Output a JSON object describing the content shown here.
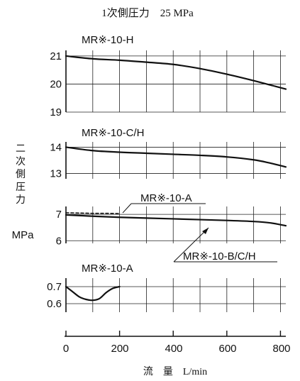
{
  "title": "1次側圧力　25 MPa",
  "ylabel_chars": [
    "二",
    "次",
    "側",
    "圧",
    "力"
  ],
  "ylabel_unit": "MPa",
  "xlabel": "流　量　L/min",
  "x_ticks": [
    "0",
    "200",
    "400",
    "600",
    "800"
  ],
  "chart_data": [
    {
      "type": "line",
      "title": "MR※-10-H",
      "xlim": [
        0,
        820
      ],
      "ylim": [
        19,
        21.2
      ],
      "yticks": [
        19,
        20,
        21
      ],
      "grid": true,
      "series": [
        {
          "x": [
            0,
            100,
            200,
            300,
            400,
            500,
            600,
            700,
            780,
            820
          ],
          "y": [
            21.0,
            20.9,
            20.85,
            20.78,
            20.7,
            20.55,
            20.35,
            20.12,
            19.92,
            19.82
          ]
        }
      ]
    },
    {
      "type": "line",
      "title": "MR※-10-C/H",
      "xlim": [
        0,
        820
      ],
      "ylim": [
        12.8,
        14.2
      ],
      "yticks": [
        13,
        14
      ],
      "grid": true,
      "series": [
        {
          "x": [
            0,
            100,
            200,
            300,
            400,
            500,
            600,
            700,
            760,
            820
          ],
          "y": [
            14.0,
            13.87,
            13.81,
            13.77,
            13.73,
            13.69,
            13.63,
            13.52,
            13.4,
            13.25
          ]
        }
      ]
    },
    {
      "type": "line",
      "xlim": [
        0,
        820
      ],
      "ylim": [
        5.9,
        7.3
      ],
      "yticks": [
        6,
        7
      ],
      "grid": true,
      "series": [
        {
          "name": "MR※-10-B/C/H",
          "style": "solid",
          "x": [
            0,
            100,
            200,
            300,
            400,
            500,
            600,
            700,
            760,
            820
          ],
          "y": [
            6.98,
            6.93,
            6.89,
            6.86,
            6.83,
            6.8,
            6.77,
            6.73,
            6.68,
            6.57
          ]
        },
        {
          "name": "MR※-10-A",
          "style": "dashed",
          "x": [
            0,
            50,
            100,
            150,
            200
          ],
          "y": [
            7.06,
            7.05,
            7.04,
            7.04,
            7.03
          ]
        }
      ]
    },
    {
      "type": "line",
      "title": "MR※-10-A",
      "xlim": [
        0,
        820
      ],
      "ylim": [
        0.55,
        0.75
      ],
      "yticks": [
        0.6,
        0.7
      ],
      "grid": true,
      "series": [
        {
          "x": [
            0,
            25,
            50,
            75,
            100,
            125,
            150,
            175,
            200
          ],
          "y": [
            0.7,
            0.67,
            0.64,
            0.625,
            0.62,
            0.63,
            0.665,
            0.69,
            0.7
          ]
        }
      ]
    }
  ]
}
